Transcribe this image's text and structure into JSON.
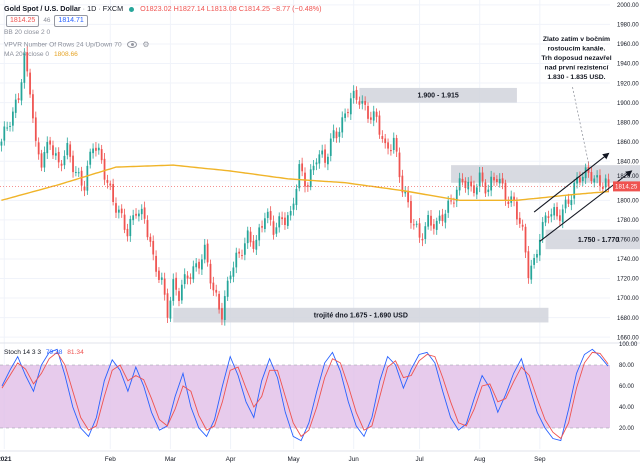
{
  "header": {
    "symbol": "Gold Spot / U.S. Dollar",
    "interval": "1D",
    "exchange": "FXCM",
    "ohlc": "O1823.02  H1827.14  L1813.08  C1814.25  −8.77 (−0.48%)",
    "bid": "1814.25",
    "spread": "46",
    "ask": "1814.71",
    "bb_label": "BB 20 close 2 0",
    "vpvr_label": "VPVR Number Of Rows 24 Up/Down 70",
    "ma_label": "MA 200 close 0",
    "ma_value": "1808.66",
    "stoch_label": "Stoch 14 3 3",
    "stoch_k": "79.38",
    "stoch_d": "81.34"
  },
  "colors": {
    "up": "#26a69a",
    "down": "#ef5350",
    "ma": "#f0b429",
    "stoch_k": "#2962ff",
    "stoch_d": "#ef5350",
    "stoch_band": "#e1bee7"
  },
  "icons": [
    "eye-icon",
    "gear-icon"
  ],
  "chart_data": [
    {
      "type": "candlestick",
      "title": "Gold Spot / U.S. Dollar 1D FXCM",
      "ylim": [
        1655,
        2005
      ],
      "y_ticks": [
        1660,
        1680,
        1700,
        1720,
        1740,
        1760,
        1780,
        1800,
        1820,
        1840,
        1860,
        1880,
        1900,
        1920,
        1940,
        1960,
        1980,
        2000
      ],
      "x_tick_labels": [
        "2021",
        "Feb",
        "Mar",
        "Apr",
        "May",
        "Jun",
        "Jul",
        "Aug",
        "Sep"
      ],
      "current_price": 1814.25,
      "price_label": "1814.25",
      "close_path": [
        [
          0,
          1860
        ],
        [
          4,
          1885
        ],
        [
          6,
          1910
        ],
        [
          8,
          1948
        ],
        [
          10,
          1915
        ],
        [
          12,
          1850
        ],
        [
          14,
          1838
        ],
        [
          17,
          1865
        ],
        [
          20,
          1835
        ],
        [
          23,
          1848
        ],
        [
          26,
          1830
        ],
        [
          29,
          1818
        ],
        [
          32,
          1855
        ],
        [
          35,
          1840
        ],
        [
          38,
          1812
        ],
        [
          41,
          1784
        ],
        [
          44,
          1765
        ],
        [
          47,
          1795
        ],
        [
          50,
          1782
        ],
        [
          53,
          1735
        ],
        [
          56,
          1718
        ],
        [
          58,
          1690
        ],
        [
          60,
          1712
        ],
        [
          62,
          1700
        ],
        [
          65,
          1724
        ],
        [
          68,
          1735
        ],
        [
          71,
          1745
        ],
        [
          74,
          1705
        ],
        [
          77,
          1688
        ],
        [
          80,
          1728
        ],
        [
          83,
          1740
        ],
        [
          86,
          1765
        ],
        [
          89,
          1758
        ],
        [
          92,
          1782
        ],
        [
          95,
          1772
        ],
        [
          98,
          1785
        ],
        [
          101,
          1780
        ],
        [
          104,
          1830
        ],
        [
          107,
          1820
        ],
        [
          110,
          1845
        ],
        [
          113,
          1838
        ],
        [
          116,
          1870
        ],
        [
          119,
          1880
        ],
        [
          122,
          1900
        ],
        [
          125,
          1905
        ],
        [
          128,
          1892
        ],
        [
          131,
          1880
        ],
        [
          134,
          1850
        ],
        [
          137,
          1865
        ],
        [
          140,
          1812
        ],
        [
          143,
          1780
        ],
        [
          146,
          1765
        ],
        [
          149,
          1780
        ],
        [
          152,
          1770
        ],
        [
          155,
          1790
        ],
        [
          158,
          1808
        ],
        [
          161,
          1818
        ],
        [
          164,
          1808
        ],
        [
          167,
          1826
        ],
        [
          170,
          1810
        ],
        [
          173,
          1822
        ],
        [
          176,
          1808
        ],
        [
          179,
          1798
        ],
        [
          182,
          1762
        ],
        [
          184,
          1726
        ],
        [
          186,
          1738
        ],
        [
          188,
          1768
        ],
        [
          191,
          1785
        ],
        [
          194,
          1782
        ],
        [
          197,
          1798
        ],
        [
          200,
          1812
        ],
        [
          203,
          1824
        ],
        [
          206,
          1830
        ],
        [
          209,
          1818
        ],
        [
          212,
          1814
        ]
      ],
      "ma200_path": [
        [
          0,
          1800
        ],
        [
          20,
          1816
        ],
        [
          40,
          1834
        ],
        [
          60,
          1836
        ],
        [
          80,
          1830
        ],
        [
          100,
          1822
        ],
        [
          120,
          1818
        ],
        [
          140,
          1810
        ],
        [
          160,
          1800
        ],
        [
          180,
          1800
        ],
        [
          200,
          1806
        ],
        [
          212,
          1809
        ]
      ],
      "zones": [
        {
          "label": "1.900 - 1.915",
          "from": 1900,
          "to": 1915,
          "x0": 125,
          "x1": 180
        },
        {
          "label": "1.750 - 1.770",
          "from": 1750,
          "to": 1770,
          "x0": 190,
          "x1": 227
        },
        {
          "label": "trojité dno 1.675 - 1.690 USD",
          "from": 1675,
          "to": 1690,
          "x0": 60,
          "x1": 191
        },
        {
          "label": "",
          "from": 1818,
          "to": 1836,
          "x0": 157,
          "x1": 232
        }
      ],
      "channel": [
        {
          "x0": 186,
          "y0": 1788,
          "x1": 212,
          "y1": 1848
        },
        {
          "x0": 188,
          "y0": 1758,
          "x1": 220,
          "y1": 1830
        }
      ],
      "annotation": {
        "lines": [
          "Zlato zatím v bočním",
          "rostoucím kanále.",
          "Trh doposud nezavřel",
          "nad první rezistencí",
          "1.830 - 1.835 USD."
        ],
        "x": 198,
        "price": 1963
      }
    },
    {
      "type": "line",
      "title": "Stoch 14 3 3",
      "ylim": [
        0,
        100
      ],
      "y_ticks": [
        0,
        20,
        40,
        60,
        80,
        100
      ],
      "band": [
        20,
        80
      ],
      "series": [
        {
          "name": "%K",
          "values": [
            60,
            75,
            88,
            70,
            55,
            80,
            92,
            95,
            70,
            40,
            20,
            12,
            30,
            65,
            85,
            75,
            55,
            78,
            60,
            35,
            18,
            22,
            50,
            72,
            40,
            20,
            12,
            28,
            60,
            88,
            70,
            45,
            30,
            65,
            86,
            68,
            35,
            12,
            8,
            25,
            55,
            82,
            92,
            74,
            45,
            22,
            12,
            30,
            65,
            88,
            80,
            58,
            76,
            90,
            92,
            82,
            55,
            30,
            18,
            24,
            48,
            70,
            58,
            35,
            52,
            72,
            86,
            60,
            35,
            20,
            10,
            8,
            38,
            72,
            90,
            95,
            88,
            79
          ]
        },
        {
          "name": "%D",
          "values": [
            58,
            70,
            82,
            76,
            62,
            72,
            86,
            92,
            80,
            55,
            30,
            18,
            22,
            50,
            75,
            80,
            65,
            70,
            66,
            48,
            28,
            22,
            38,
            60,
            55,
            32,
            18,
            22,
            45,
            75,
            78,
            58,
            40,
            50,
            75,
            75,
            50,
            25,
            12,
            18,
            40,
            68,
            86,
            82,
            60,
            35,
            18,
            22,
            50,
            78,
            84,
            68,
            70,
            84,
            90,
            88,
            68,
            45,
            25,
            22,
            38,
            60,
            62,
            45,
            48,
            64,
            78,
            70,
            48,
            28,
            16,
            10,
            25,
            58,
            82,
            92,
            91,
            81
          ]
        }
      ]
    }
  ]
}
